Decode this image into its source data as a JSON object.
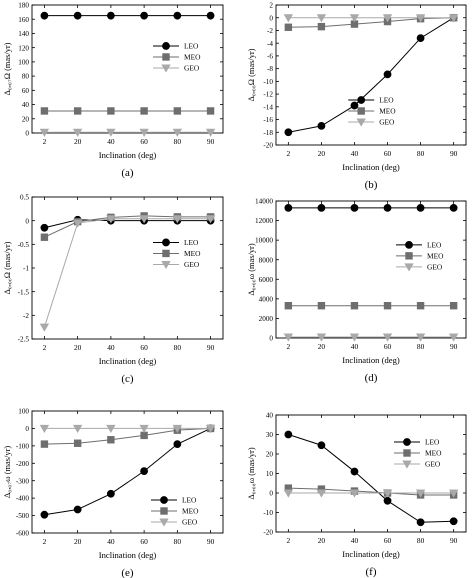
{
  "chart_data": [
    {
      "type": "line",
      "panel_label": "(a)",
      "xlabel": "Inclination (deg)",
      "ylabel": "Δ₀,₀₇Ω (mas/yr)",
      "categories": [
        "2",
        "20",
        "40",
        "60",
        "80",
        "90"
      ],
      "ylim": [
        0,
        180
      ],
      "yticks": [
        "0",
        "20",
        "40",
        "60",
        "80",
        "100",
        "120",
        "140",
        "160",
        "180"
      ],
      "legend_position": "middle-right",
      "series": [
        {
          "name": "LEO",
          "values": [
            165,
            165,
            165,
            165,
            165,
            165
          ]
        },
        {
          "name": "MEO",
          "values": [
            31,
            31,
            31,
            31,
            31,
            31
          ]
        },
        {
          "name": "GEO",
          "values": [
            1,
            1,
            1,
            1,
            1,
            1
          ]
        }
      ]
    },
    {
      "type": "line",
      "panel_label": "(b)",
      "xlabel": "Inclination (deg)",
      "ylabel": "Δ₀,₀₈Ω (mas/yr)",
      "categories": [
        "2",
        "20",
        "40",
        "60",
        "80",
        "90"
      ],
      "ylim": [
        -20,
        2
      ],
      "yticks": [
        "-20",
        "-18",
        "-16",
        "-14",
        "-12",
        "-10",
        "-8",
        "-6",
        "-4",
        "-2",
        "0",
        "2"
      ],
      "legend_position": "bottom-left",
      "series": [
        {
          "name": "LEO",
          "values": [
            -18.0,
            -17.0,
            -13.8,
            -8.9,
            -3.2,
            0
          ]
        },
        {
          "name": "MEO",
          "values": [
            -1.5,
            -1.4,
            -1.0,
            -0.6,
            -0.15,
            0
          ]
        },
        {
          "name": "GEO",
          "values": [
            0,
            0,
            0,
            0,
            0,
            0
          ]
        }
      ]
    },
    {
      "type": "line",
      "panel_label": "(c)",
      "xlabel": "Inclination (deg)",
      "ylabel": "Δ₀,₀₆Ω (mas/yr)",
      "categories": [
        "2",
        "20",
        "40",
        "60",
        "80",
        "90"
      ],
      "ylim": [
        -2.5,
        0.5
      ],
      "yticks": [
        "-2.5",
        "-2",
        "-1.5",
        "-1",
        "-0.5",
        "0",
        "0.5"
      ],
      "legend_position": "middle-right",
      "series": [
        {
          "name": "LEO",
          "values": [
            -0.15,
            0.02,
            0.0,
            0.0,
            0.0,
            0.0
          ]
        },
        {
          "name": "MEO",
          "values": [
            -0.35,
            -0.02,
            0.07,
            0.1,
            0.08,
            0.08
          ]
        },
        {
          "name": "GEO",
          "values": [
            -2.25,
            -0.05,
            0.04,
            0.04,
            0.04,
            0.04
          ]
        }
      ]
    },
    {
      "type": "line",
      "panel_label": "(d)",
      "xlabel": "Inclination (deg)",
      "ylabel": "Δ₀,₀₆ω (mas/yr)",
      "categories": [
        "2",
        "20",
        "40",
        "60",
        "80",
        "90"
      ],
      "ylim": [
        0,
        14000
      ],
      "yticks": [
        "0",
        "2000",
        "4000",
        "6000",
        "8000",
        "10000",
        "12000",
        "14000"
      ],
      "legend_position": "middle-right",
      "series": [
        {
          "name": "LEO",
          "values": [
            13300,
            13300,
            13300,
            13300,
            13300,
            13300
          ]
        },
        {
          "name": "MEO",
          "values": [
            3300,
            3300,
            3300,
            3300,
            3300,
            3300
          ]
        },
        {
          "name": "GEO",
          "values": [
            100,
            100,
            100,
            100,
            100,
            100
          ]
        }
      ]
    },
    {
      "type": "line",
      "panel_label": "(e)",
      "xlabel": "Inclination (deg)",
      "ylabel": "Δ₀,₀₇ω (mas/yr)",
      "categories": [
        "2",
        "20",
        "40",
        "60",
        "80",
        "90"
      ],
      "ylim": [
        -600,
        100
      ],
      "yticks": [
        "-600",
        "-500",
        "-400",
        "-300",
        "-200",
        "-100",
        "0",
        "100"
      ],
      "legend_position": "bottom-right",
      "series": [
        {
          "name": "LEO",
          "values": [
            -495,
            -465,
            -375,
            -245,
            -90,
            0
          ]
        },
        {
          "name": "MEO",
          "values": [
            -90,
            -85,
            -65,
            -40,
            -10,
            0
          ]
        },
        {
          "name": "GEO",
          "values": [
            0,
            0,
            0,
            0,
            0,
            0
          ]
        }
      ]
    },
    {
      "type": "line",
      "panel_label": "(f)",
      "xlabel": "Inclination (deg)",
      "ylabel": "Δ₀,₀₈ω (mas/yr)",
      "categories": [
        "2",
        "20",
        "40",
        "60",
        "80",
        "90"
      ],
      "ylim": [
        -20,
        40
      ],
      "yticks": [
        "-20",
        "-10",
        "0",
        "10",
        "20",
        "30",
        "40"
      ],
      "legend_position": "top-right",
      "series": [
        {
          "name": "LEO",
          "values": [
            30,
            24.5,
            11,
            -4,
            -15,
            -14.5
          ]
        },
        {
          "name": "MEO",
          "values": [
            2.5,
            2.0,
            1.0,
            0,
            -1.0,
            -1.0
          ]
        },
        {
          "name": "GEO",
          "values": [
            0,
            0,
            0,
            0,
            0,
            0
          ]
        }
      ]
    }
  ],
  "series_colors": {
    "LEO": "#000000",
    "MEO": "#6e6e6e",
    "GEO": "#a9a9a9"
  },
  "series_markers": {
    "LEO": "circle",
    "MEO": "square",
    "GEO": "triangle-down"
  }
}
